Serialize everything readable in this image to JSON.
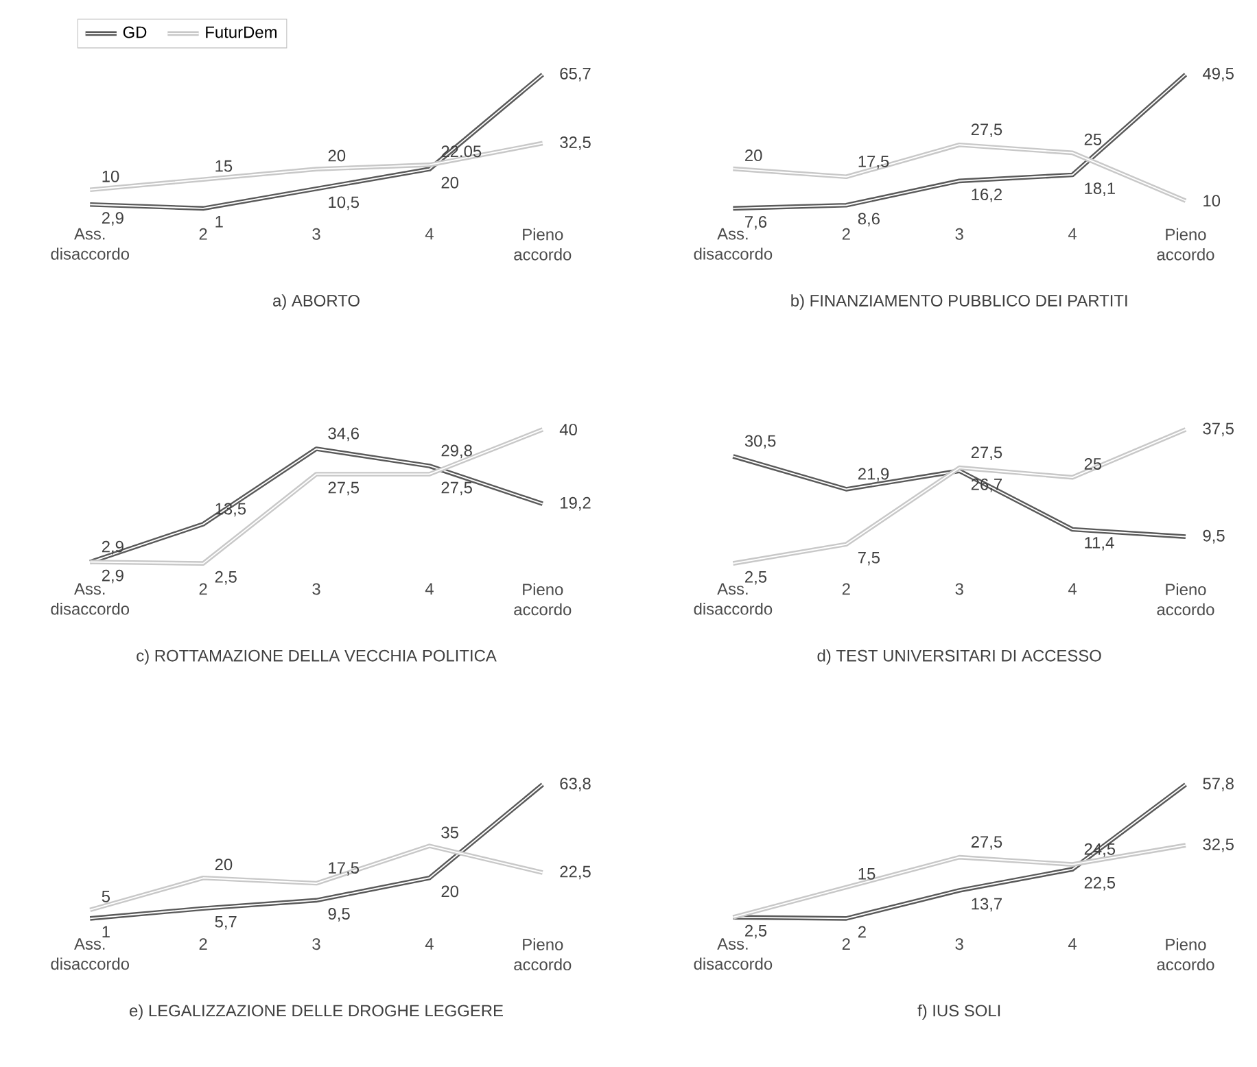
{
  "chart_data": [
    {
      "type": "line",
      "title": "a) ABORTO",
      "categories": [
        "Ass. disaccordo",
        "2",
        "3",
        "4",
        "Pieno accordo"
      ],
      "legend": "top left",
      "series": [
        {
          "name": "GD",
          "color": "#595959",
          "values": [
            2.9,
            1,
            10.5,
            20,
            65.7
          ],
          "value_labels": [
            "2,9",
            "1",
            "10,5",
            "20",
            "65,7"
          ]
        },
        {
          "name": "FuturDem",
          "color": "#c8c8c8",
          "values": [
            10,
            15,
            20,
            22.05,
            32.5
          ],
          "value_labels": [
            "10",
            "15",
            "20",
            "22.05",
            "32,5"
          ]
        }
      ]
    },
    {
      "type": "line",
      "title": "b) FINANZIAMENTO PUBBLICO DEI PARTITI",
      "categories": [
        "Ass. disaccordo",
        "2",
        "3",
        "4",
        "Pieno accordo"
      ],
      "series": [
        {
          "color": "#595959",
          "values": [
            7.6,
            8.6,
            16.2,
            18.1,
            49.5
          ],
          "value_labels": [
            "7,6",
            "8,6",
            "16,2",
            "18,1",
            "49,5"
          ]
        },
        {
          "color": "#c8c8c8",
          "values": [
            20,
            17.5,
            27.5,
            25,
            10
          ],
          "value_labels": [
            "20",
            "17,5",
            "27,5",
            "25",
            "10"
          ]
        }
      ]
    },
    {
      "type": "line",
      "title": "c) ROTTAMAZIONE DELLA VECCHIA POLITICA",
      "categories": [
        "Ass. disaccordo",
        "2",
        "3",
        "4",
        "Pieno accordo"
      ],
      "series": [
        {
          "color": "#595959",
          "values": [
            2.9,
            13.5,
            34.6,
            29.8,
            19.2
          ],
          "value_labels": [
            "2,9",
            "13,5",
            "34,6",
            "29,8",
            "19,2"
          ]
        },
        {
          "color": "#c8c8c8",
          "values": [
            2.9,
            2.5,
            27.5,
            27.5,
            40
          ],
          "value_labels": [
            "2,9",
            "2,5",
            "27,5",
            "27,5",
            "40"
          ]
        }
      ]
    },
    {
      "type": "line",
      "title": "d) TEST UNIVERSITARI DI ACCESSO",
      "categories": [
        "Ass. disaccordo",
        "2",
        "3",
        "4",
        "Pieno accordo"
      ],
      "series": [
        {
          "color": "#595959",
          "values": [
            30.5,
            21.9,
            26.7,
            11.4,
            9.5
          ],
          "value_labels": [
            "30,5",
            "21,9",
            "26,7",
            "11,4",
            "9,5"
          ]
        },
        {
          "color": "#c8c8c8",
          "values": [
            2.5,
            7.5,
            27.5,
            25,
            37.5
          ],
          "value_labels": [
            "2,5",
            "7,5",
            "27,5",
            "25",
            "37,5"
          ]
        }
      ]
    },
    {
      "type": "line",
      "title": "e) LEGALIZZAZIONE DELLE DROGHE LEGGERE",
      "categories": [
        "Ass. disaccordo",
        "2",
        "3",
        "4",
        "Pieno accordo"
      ],
      "series": [
        {
          "color": "#595959",
          "values": [
            1,
            5.7,
            9.5,
            20,
            63.8
          ],
          "value_labels": [
            "1",
            "5,7",
            "9,5",
            "20",
            "63,8"
          ]
        },
        {
          "color": "#c8c8c8",
          "values": [
            5,
            20,
            17.5,
            35,
            22.5
          ],
          "value_labels": [
            "5",
            "20",
            "17,5",
            "35",
            "22,5"
          ]
        }
      ]
    },
    {
      "type": "line",
      "title": "f) IUS SOLI",
      "categories": [
        "Ass. disaccordo",
        "2",
        "3",
        "4",
        "Pieno accordo"
      ],
      "series": [
        {
          "color": "#595959",
          "values": [
            2.5,
            2,
            13.7,
            22.5,
            57.8
          ],
          "value_labels": [
            "2,5",
            "2",
            "13,7",
            "22,5",
            "57,8"
          ]
        },
        {
          "color": "#c8c8c8",
          "values": [
            2.5,
            15,
            27.5,
            24.5,
            32.5
          ],
          "value_labels": [
            null,
            "15",
            "27,5",
            "24,5",
            "32,5"
          ]
        }
      ]
    }
  ]
}
